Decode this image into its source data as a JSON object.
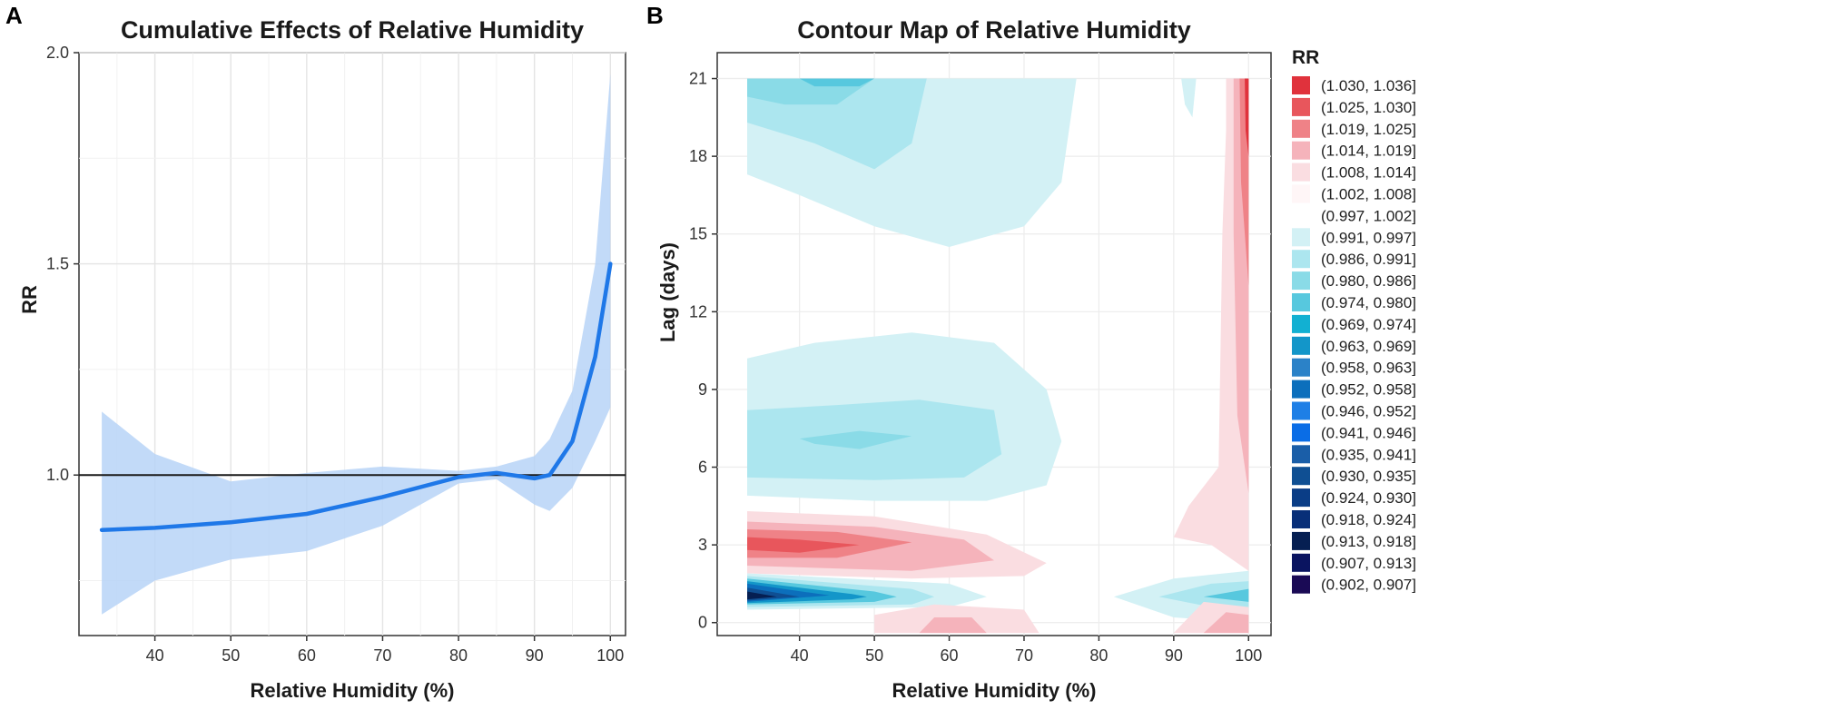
{
  "chart_data": [
    {
      "panel": "A",
      "type": "line",
      "title": "Cumulative Effects of Relative Humidity",
      "xlabel": "Relative Humidity (%)",
      "ylabel": "RR",
      "xlim": [
        30,
        102
      ],
      "ylim": [
        0.62,
        2.0
      ],
      "xticks": [
        40,
        50,
        60,
        70,
        80,
        90,
        100
      ],
      "yticks": [
        1.0,
        1.5,
        2.0
      ],
      "ytick_labels": [
        "1.0",
        "1.5",
        "2.0"
      ],
      "reference_line": 1.0,
      "series": [
        {
          "name": "RR",
          "x": [
            33,
            40,
            50,
            60,
            70,
            80,
            85,
            90,
            92,
            95,
            98,
            100
          ],
          "y": [
            0.87,
            0.875,
            0.888,
            0.908,
            0.948,
            0.995,
            1.005,
            0.992,
            1.0,
            1.08,
            1.28,
            1.5
          ],
          "lower": [
            0.67,
            0.75,
            0.8,
            0.82,
            0.88,
            0.98,
            0.99,
            0.93,
            0.915,
            0.97,
            1.08,
            1.16
          ],
          "upper": [
            1.15,
            1.05,
            0.985,
            1.005,
            1.02,
            1.01,
            1.02,
            1.045,
            1.085,
            1.2,
            1.5,
            1.95
          ]
        }
      ],
      "colors": {
        "line": "#1f78e8",
        "band": "#b7d3f7",
        "reference": "#1a1a1a"
      }
    },
    {
      "panel": "B",
      "type": "heatmap",
      "title": "Contour Map of Relative Humidity",
      "xlabel": "Relative Humidity (%)",
      "ylabel": "Lag (days)",
      "xlim": [
        29,
        103
      ],
      "ylim": [
        -0.5,
        22
      ],
      "xticks": [
        40,
        50,
        60,
        70,
        80,
        90,
        100
      ],
      "yticks": [
        0,
        3,
        6,
        9,
        12,
        15,
        18,
        21
      ],
      "legend_title": "RR",
      "legend": [
        {
          "label": "(1.030, 1.036]",
          "color": "#e0323c"
        },
        {
          "label": "(1.025, 1.030]",
          "color": "#e8565c"
        },
        {
          "label": "(1.019, 1.025]",
          "color": "#ef8287"
        },
        {
          "label": "(1.014, 1.019]",
          "color": "#f5b3bb"
        },
        {
          "label": "(1.008, 1.014]",
          "color": "#fadde1"
        },
        {
          "label": "(1.002, 1.008]",
          "color": "#fff6f7"
        },
        {
          "label": "(0.997, 1.002]",
          "color": "#ffffff"
        },
        {
          "label": "(0.991, 0.997]",
          "color": "#d3f1f5"
        },
        {
          "label": "(0.986, 0.991]",
          "color": "#ace6ef"
        },
        {
          "label": "(0.980, 0.986]",
          "color": "#8adbe7"
        },
        {
          "label": "(0.974, 0.980]",
          "color": "#57c8de"
        },
        {
          "label": "(0.969, 0.974]",
          "color": "#12b0d2"
        },
        {
          "label": "(0.963, 0.969]",
          "color": "#1396c9"
        },
        {
          "label": "(0.958, 0.963]",
          "color": "#2b82c8"
        },
        {
          "label": "(0.952, 0.958]",
          "color": "#0c6fbc"
        },
        {
          "label": "(0.946, 0.952]",
          "color": "#1e7fe6"
        },
        {
          "label": "(0.941, 0.946]",
          "color": "#0a6de6"
        },
        {
          "label": "(0.935, 0.941]",
          "color": "#1a5ea8"
        },
        {
          "label": "(0.930, 0.935]",
          "color": "#0f4f93"
        },
        {
          "label": "(0.924, 0.930]",
          "color": "#0a3d86"
        },
        {
          "label": "(0.918, 0.924]",
          "color": "#082f78"
        },
        {
          "label": "(0.913, 0.918]",
          "color": "#061f52"
        },
        {
          "label": "(0.907, 0.913]",
          "color": "#0a1460"
        },
        {
          "label": "(0.902, 0.907]",
          "color": "#1a0a55"
        }
      ],
      "regions": [
        {
          "color": "#d3f1f5",
          "pts": [
            [
              33,
              21
            ],
            [
              77,
              21
            ],
            [
              75,
              17
            ],
            [
              70,
              15.3
            ],
            [
              60,
              14.5
            ],
            [
              50,
              15.3
            ],
            [
              40,
              16.5
            ],
            [
              33,
              17.3
            ]
          ]
        },
        {
          "color": "#ace6ef",
          "pts": [
            [
              33,
              21
            ],
            [
              57,
              21
            ],
            [
              55,
              18.5
            ],
            [
              50,
              17.5
            ],
            [
              42,
              18.5
            ],
            [
              33,
              19.3
            ]
          ]
        },
        {
          "color": "#8adbe7",
          "pts": [
            [
              33,
              21
            ],
            [
              50,
              21
            ],
            [
              45,
              20
            ],
            [
              38,
              20
            ],
            [
              33,
              20.3
            ]
          ]
        },
        {
          "color": "#57c8de",
          "pts": [
            [
              40,
              21
            ],
            [
              50,
              21
            ],
            [
              48,
              20.7
            ],
            [
              42,
              20.7
            ]
          ]
        },
        {
          "color": "#d3f1f5",
          "pts": [
            [
              33,
              10.2
            ],
            [
              42,
              10.8
            ],
            [
              55,
              11.2
            ],
            [
              66,
              10.8
            ],
            [
              73,
              9
            ],
            [
              75,
              7
            ],
            [
              73,
              5.3
            ],
            [
              65,
              4.7
            ],
            [
              50,
              4.7
            ],
            [
              33,
              4.9
            ]
          ]
        },
        {
          "color": "#ace6ef",
          "pts": [
            [
              33,
              8.2
            ],
            [
              45,
              8.4
            ],
            [
              56,
              8.6
            ],
            [
              66,
              8.2
            ],
            [
              67,
              6.5
            ],
            [
              62,
              5.6
            ],
            [
              50,
              5.5
            ],
            [
              33,
              5.6
            ]
          ]
        },
        {
          "color": "#8adbe7",
          "pts": [
            [
              40,
              7.1
            ],
            [
              48,
              7.4
            ],
            [
              55,
              7.2
            ],
            [
              48,
              6.7
            ],
            [
              42,
              6.9
            ]
          ]
        },
        {
          "color": "#fadde1",
          "pts": [
            [
              33,
              4.3
            ],
            [
              50,
              4.1
            ],
            [
              65,
              3.4
            ],
            [
              73,
              2.3
            ],
            [
              70,
              1.8
            ],
            [
              55,
              1.7
            ],
            [
              33,
              1.9
            ]
          ]
        },
        {
          "color": "#f5b3bb",
          "pts": [
            [
              33,
              3.9
            ],
            [
              50,
              3.7
            ],
            [
              62,
              3.2
            ],
            [
              66,
              2.4
            ],
            [
              55,
              2.0
            ],
            [
              33,
              2.2
            ]
          ]
        },
        {
          "color": "#ef8287",
          "pts": [
            [
              33,
              3.6
            ],
            [
              45,
              3.5
            ],
            [
              55,
              3.1
            ],
            [
              45,
              2.5
            ],
            [
              33,
              2.5
            ]
          ]
        },
        {
          "color": "#e8565c",
          "pts": [
            [
              33,
              3.3
            ],
            [
              40,
              3.2
            ],
            [
              48,
              3.0
            ],
            [
              40,
              2.7
            ],
            [
              33,
              2.8
            ]
          ]
        },
        {
          "color": "#d3f1f5",
          "pts": [
            [
              33,
              1.9
            ],
            [
              60,
              1.5
            ],
            [
              65,
              1.0
            ],
            [
              60,
              0.6
            ],
            [
              33,
              0.5
            ]
          ]
        },
        {
          "color": "#ace6ef",
          "pts": [
            [
              33,
              1.8
            ],
            [
              55,
              1.3
            ],
            [
              58,
              1.0
            ],
            [
              55,
              0.7
            ],
            [
              33,
              0.6
            ]
          ]
        },
        {
          "color": "#57c8de",
          "pts": [
            [
              33,
              1.7
            ],
            [
              50,
              1.2
            ],
            [
              53,
              1.0
            ],
            [
              50,
              0.8
            ],
            [
              33,
              0.7
            ]
          ]
        },
        {
          "color": "#1396c9",
          "pts": [
            [
              33,
              1.6
            ],
            [
              47,
              1.1
            ],
            [
              49,
              1.0
            ],
            [
              47,
              0.9
            ],
            [
              33,
              0.75
            ]
          ]
        },
        {
          "color": "#0c6fbc",
          "pts": [
            [
              33,
              1.5
            ],
            [
              44,
              1.05
            ],
            [
              33,
              0.8
            ]
          ]
        },
        {
          "color": "#0f4f93",
          "pts": [
            [
              33,
              1.35
            ],
            [
              40,
              1.0
            ],
            [
              33,
              0.85
            ]
          ]
        },
        {
          "color": "#061f52",
          "pts": [
            [
              33,
              1.2
            ],
            [
              37,
              1.0
            ],
            [
              33,
              0.9
            ]
          ]
        },
        {
          "color": "#fadde1",
          "pts": [
            [
              50,
              0.3
            ],
            [
              58,
              0.7
            ],
            [
              70,
              0.5
            ],
            [
              72,
              -0.4
            ],
            [
              50,
              -0.4
            ]
          ]
        },
        {
          "color": "#f5b3bb",
          "pts": [
            [
              56,
              -0.4
            ],
            [
              58,
              0.2
            ],
            [
              63,
              0.2
            ],
            [
              65,
              -0.4
            ]
          ]
        },
        {
          "color": "#d3f1f5",
          "pts": [
            [
              82,
              1.0
            ],
            [
              90,
              1.7
            ],
            [
              100,
              2.0
            ],
            [
              100,
              0
            ],
            [
              90,
              0.2
            ]
          ]
        },
        {
          "color": "#ace6ef",
          "pts": [
            [
              88,
              1.0
            ],
            [
              95,
              1.5
            ],
            [
              100,
              1.6
            ],
            [
              100,
              0.6
            ],
            [
              95,
              0.6
            ]
          ]
        },
        {
          "color": "#57c8de",
          "pts": [
            [
              94,
              1.0
            ],
            [
              100,
              1.3
            ],
            [
              100,
              0.8
            ]
          ]
        },
        {
          "color": "#fadde1",
          "pts": [
            [
              90,
              -0.4
            ],
            [
              94,
              0.8
            ],
            [
              100,
              0.6
            ],
            [
              100,
              -0.4
            ]
          ]
        },
        {
          "color": "#f5b3bb",
          "pts": [
            [
              94,
              -0.4
            ],
            [
              97,
              0.4
            ],
            [
              100,
              0.3
            ],
            [
              100,
              -0.4
            ]
          ]
        },
        {
          "color": "#fadde1",
          "pts": [
            [
              97,
              21
            ],
            [
              100,
              21
            ],
            [
              100,
              2
            ],
            [
              95,
              3
            ],
            [
              90,
              3.3
            ],
            [
              92,
              4.5
            ],
            [
              96,
              6
            ],
            [
              96.5,
              15
            ],
            [
              97,
              19
            ]
          ]
        },
        {
          "color": "#f5b3bb",
          "pts": [
            [
              98,
              21
            ],
            [
              100,
              21
            ],
            [
              100,
              5
            ],
            [
              98.5,
              8
            ],
            [
              98,
              15
            ]
          ]
        },
        {
          "color": "#ef8287",
          "pts": [
            [
              98.8,
              21
            ],
            [
              100,
              21
            ],
            [
              100,
              13
            ],
            [
              99,
              17
            ]
          ]
        },
        {
          "color": "#e0323c",
          "pts": [
            [
              99.5,
              21
            ],
            [
              100,
              21
            ],
            [
              100,
              18
            ],
            [
              99.6,
              19
            ]
          ]
        },
        {
          "color": "#d3f1f5",
          "pts": [
            [
              91,
              21
            ],
            [
              93,
              21
            ],
            [
              92.5,
              19.5
            ],
            [
              91.5,
              20
            ]
          ]
        }
      ]
    }
  ]
}
